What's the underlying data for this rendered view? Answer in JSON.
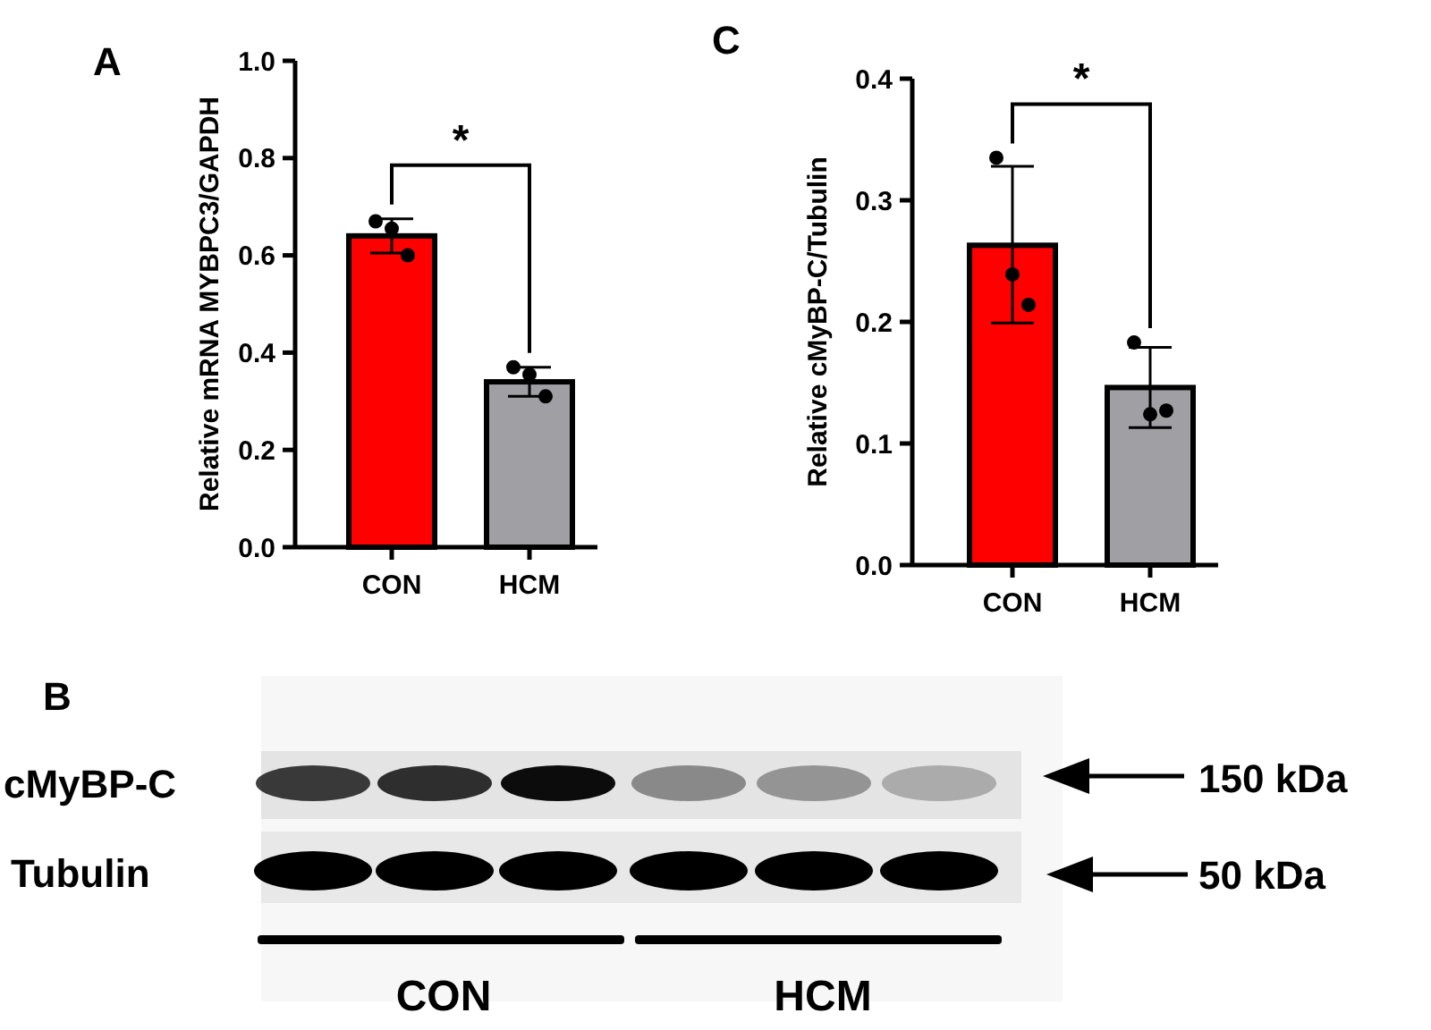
{
  "chart_data": [
    {
      "type": "bar",
      "title": "A",
      "ylabel": "Relative mRNA MYBPC3/GAPDH",
      "categories": [
        "CON",
        "HCM"
      ],
      "values": [
        0.64,
        0.34
      ],
      "colors": [
        "#ff0000",
        "#a0a0a4"
      ],
      "errors": [
        [
          0.605,
          0.675
        ],
        [
          0.31,
          0.37
        ]
      ],
      "ylim": [
        0,
        1
      ],
      "yticks": [
        {
          "value": 0,
          "label": "0.0"
        },
        {
          "value": 0.2,
          "label": "0.2"
        },
        {
          "value": 0.4,
          "label": "0.4"
        },
        {
          "value": 0.6,
          "label": "0.6"
        },
        {
          "value": 0.8,
          "label": "0.8"
        },
        {
          "value": 1,
          "label": "1.0"
        }
      ],
      "grid": false,
      "annotations": [
        "*"
      ],
      "series": [
        {
          "type": "scatter",
          "color": "#000000",
          "x": [
            "CON",
            "CON",
            "CON",
            "HCM",
            "HCM",
            "HCM"
          ],
          "values": [
            0.67,
            0.655,
            0.6,
            0.37,
            0.355,
            0.31
          ]
        }
      ]
    },
    {
      "type": "bar",
      "title": "C",
      "ylabel": "Relative cMyBP-C/Tubulin",
      "categories": [
        "CON",
        "HCM"
      ],
      "values": [
        0.263,
        0.146
      ],
      "colors": [
        "#ff0000",
        "#a0a0a4"
      ],
      "errors": [
        [
          0.199,
          0.328
        ],
        [
          0.113,
          0.179
        ]
      ],
      "ylim": [
        0,
        0.4
      ],
      "yticks": [
        {
          "value": 0,
          "label": "0.0"
        },
        0.1,
        0.2,
        0.3,
        0.4
      ],
      "grid": false,
      "annotations": [
        "*"
      ],
      "series": [
        {
          "type": "scatter",
          "color": "#000000",
          "x": [
            "CON",
            "CON",
            "CON",
            "HCM",
            "HCM",
            "HCM"
          ],
          "values": [
            0.335,
            0.239,
            0.214,
            0.183,
            0.124,
            0.127
          ]
        }
      ]
    },
    {
      "type": "other",
      "title": "B",
      "annotations": [
        "cMyBP-C",
        "Tubulin",
        "150 kDa",
        "50 kDa",
        "CON",
        "HCM"
      ]
    }
  ]
}
